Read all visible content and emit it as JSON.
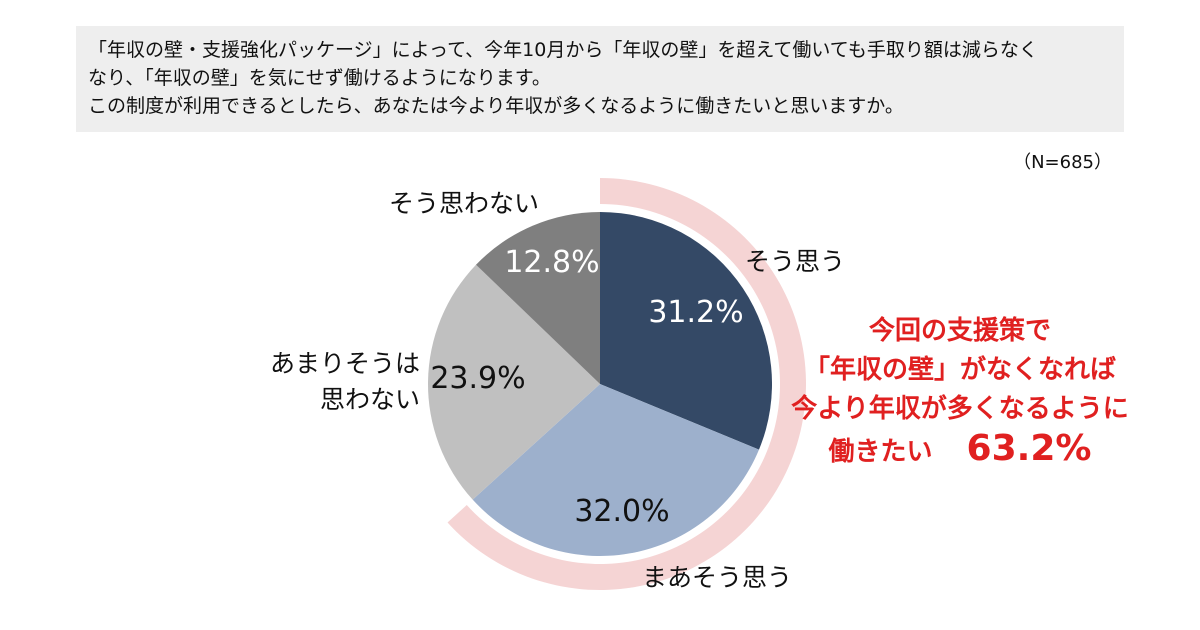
{
  "question": {
    "line1": "「年収の壁・支援強化パッケージ」によって、今年10月から「年収の壁」を超えて働いても手取り額は減らなく",
    "line2": "なり、「年収の壁」を気にせず働けるようになります。",
    "line3": "この制度が利用できるとしたら、あなたは今より年収が多くなるように働きたいと思いますか。"
  },
  "sample_size": "（N=685）",
  "highlight": {
    "line1": "今回の支援策で",
    "line2": "「年収の壁」がなくなれば",
    "line3": "今より年収が多くなるように",
    "line4": "働きたい",
    "value": "63.2%"
  },
  "colors": {
    "highlight_ring": "#f5d4d4",
    "highlight_text": "#e02020"
  },
  "chart_data": {
    "type": "pie",
    "start": "12 o'clock, clockwise",
    "slices": [
      {
        "label": "そう思う",
        "value": 31.2,
        "value_label": "31.2%",
        "color": "#344966"
      },
      {
        "label": "まあそう思う",
        "value": 32.0,
        "value_label": "32.0%",
        "color": "#9db0cc"
      },
      {
        "label": "あまりそうは思わない",
        "label_lines": [
          "あまりそうは",
          "思わない"
        ],
        "value": 23.9,
        "value_label": "23.9%",
        "color": "#c0c0c0"
      },
      {
        "label": "そう思わない",
        "value": 12.8,
        "value_label": "12.8%",
        "color": "#7f7f7f"
      }
    ],
    "highlighted_total": 63.2
  }
}
